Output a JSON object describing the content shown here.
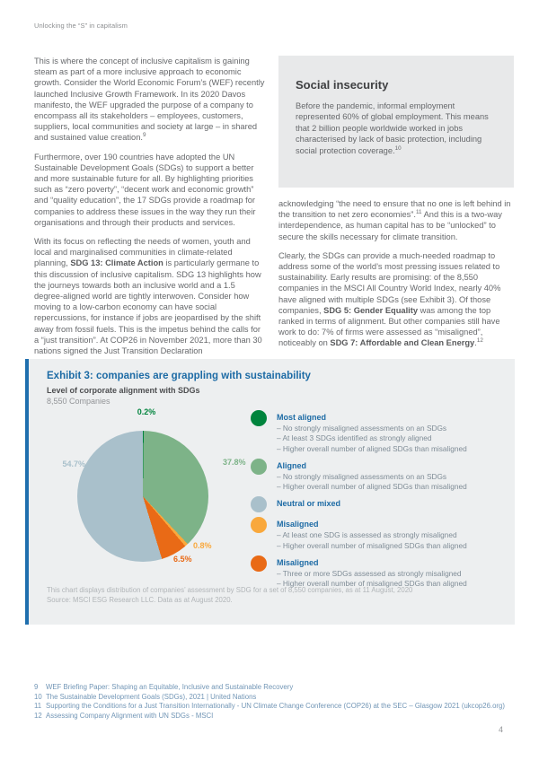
{
  "page": {
    "header": "Unlocking the “S” in capitalism",
    "page_number": "4"
  },
  "colors": {
    "accent_blue": "#1d6ba5",
    "exhibit_border_blue": "#1f6fae",
    "footnote_blue": "#7296b6",
    "body_gray": "#66686b",
    "box_gray": "#e8e9ea",
    "exhibit_gray": "#edeff0"
  },
  "left_column": {
    "p1": {
      "text": "This is where the concept of inclusive capitalism is gaining steam as part of a more inclusive approach to economic growth. Consider the World Economic Forum’s (WEF) recently launched Inclusive Growth Framework. In its 2020 Davos manifesto, the WEF upgraded the purpose of a company to encompass all its stakeholders – employees, customers, suppliers, local communities and society at large – in shared and sustained value creation.",
      "sup": "9"
    },
    "p2": {
      "text": "Furthermore, over 190 countries have adopted the UN Sustainable Development Goals (SDGs) to support a better and more sustainable future for all. By highlighting priorities such as “zero poverty”, “decent work and economic growth” and “quality education”, the 17 SDGs provide a roadmap for companies to address these issues in the way they run their organisations and through their products and services."
    },
    "p3": {
      "pre": "With its focus on reflecting the needs of women, youth and local and marginalised communities in climate-related planning, ",
      "bold": "SDG 13: Climate Action",
      "post": " is particularly germane to this discussion of inclusive capitalism. SDG 13 highlights how the journeys towards both an inclusive world and a 1.5 degree-aligned world are tightly interwoven. Consider how moving to a low-carbon economy can have social repercussions, for instance if jobs are jeopardised by the shift away from fossil fuels. This is the impetus behind the calls for a “just transition”. At COP26 in November 2021, more than 30 nations signed the Just Transition Declaration"
    }
  },
  "right_column": {
    "box": {
      "title": "Social insecurity",
      "text": "Before the pandemic, informal employment represented 60% of global employment. This means that 2 billion people worldwide worked in jobs characterised by lack of basic protection, including social protection coverage.",
      "sup": "10"
    },
    "p1": {
      "pre": "acknowledging “the need to ensure that no one is left behind in the transition to net zero economies”.",
      "sup": "11",
      "post": " And this is a two-way interdependence, as human capital has to be “unlocked” to secure the skills necessary for climate transition."
    },
    "p2": {
      "s1": "Clearly, the SDGs can provide a much-needed roadmap to address some of the world’s most pressing issues related to sustainability. Early results are promising: of the 8,550 companies in the MSCI All Country World Index, nearly 40% have aligned with multiple SDGs (see Exhibit 3). Of those companies, ",
      "b1": "SDG 5: Gender Equality",
      "s2": " was among the top ranked in terms of alignment. But other companies still have work to do: 7% of firms were assessed as “misaligned”, noticeably on ",
      "b2": "SDG 7: Affordable and Clean Energy",
      "s3": ".",
      "sup": "12"
    }
  },
  "chart_data": {
    "type": "pie",
    "title": "Exhibit 3: companies are grappling with sustainability",
    "subtitle": "Level of corporate alignment with SDGs",
    "sample": "8,550 Companies",
    "legend_position": "right",
    "slices": [
      {
        "label": "Most aligned",
        "value": 0.2,
        "display": "0.2%",
        "color": "#00843d"
      },
      {
        "label": "Aligned",
        "value": 37.8,
        "display": "37.8%",
        "color": "#7db388"
      },
      {
        "label": "Misaligned (at least one SDG strongly misaligned)",
        "value": 0.8,
        "display": "0.8%",
        "color": "#f9a83c"
      },
      {
        "label": "Misaligned (three or more SDGs strongly misaligned)",
        "value": 6.5,
        "display": "6.5%",
        "color": "#e96a16"
      },
      {
        "label": "Neutral or mixed",
        "value": 54.7,
        "display": "54.7%",
        "color": "#a9c0cb"
      }
    ],
    "legend": [
      {
        "heading": "Most aligned",
        "color": "#00843d",
        "bullets": [
          "No strongly misaligned assessments on an SDGs",
          "At least 3 SDGs identified as strongly aligned",
          "Higher overall number of aligned SDGs than misaligned"
        ]
      },
      {
        "heading": "Aligned",
        "color": "#7db388",
        "bullets": [
          "No strongly misaligned assessments on an SDGs",
          "Higher overall number of aligned SDGs than misaligned"
        ]
      },
      {
        "heading": "Neutral or mixed",
        "color": "#a9c0cb",
        "bullets": []
      },
      {
        "heading": "Misaligned",
        "color": "#f9a83c",
        "bullets": [
          "At least one SDG is assessed as strongly misaligned",
          "Higher overall number of misaligned SDGs than aligned"
        ]
      },
      {
        "heading": "Misaligned",
        "color": "#e96a16",
        "bullets": [
          "Three or more SDGs assessed as strongly misaligned",
          "Higher overall number of misaligned SDGs than aligned"
        ]
      }
    ],
    "notes": [
      "This chart displays distribution of companies’ assessment by SDG for a set of 8,550 companies, as at 11 August, 2020",
      "Source: MSCI ESG Research LLC. Data as at August 2020."
    ]
  },
  "footnotes": [
    {
      "num": "9",
      "text": "WEF Briefing Paper: Shaping an Equitable, Inclusive and Sustainable Recovery"
    },
    {
      "num": "10",
      "text": "The Sustainable Development Goals (SDGs), 2021 | United Nations"
    },
    {
      "num": "11",
      "text": "Supporting the Conditions for a Just Transition Internationally - UN Climate Change Conference (COP26) at the SEC – Glasgow 2021 (ukcop26.org)"
    },
    {
      "num": "12",
      "text": "Assessing Company Alignment with UN SDGs - MSCI"
    }
  ]
}
